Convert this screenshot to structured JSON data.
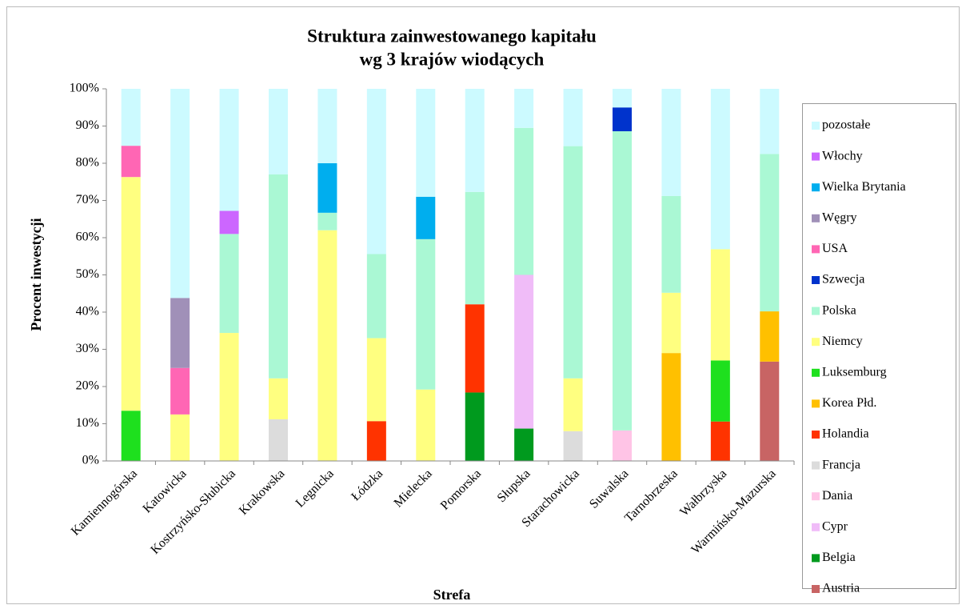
{
  "chart_data": {
    "type": "stacked_bar",
    "title": [
      "Struktura zainwestowanego kapitału",
      "wg 3 krajów wiodących"
    ],
    "x_label": "Strefa",
    "y_label": "Procent inwestycji",
    "categories": [
      "Kamiennogórska",
      "Katowicka",
      "Kostrzyńsko-Słubicka",
      "Krakowska",
      "Legnicka",
      "Łódzka",
      "Mielecka",
      "Pomorska",
      "Słupska",
      "Starachowicka",
      "Suwalska",
      "Tarnobrzeska",
      "Wałbrzyska",
      "Warmińsko-Mazurska"
    ],
    "ylim": [
      0,
      100
    ],
    "yticks": [
      {
        "value": 0,
        "label": "0%"
      },
      {
        "value": 10,
        "label": "10%"
      },
      {
        "value": 20,
        "label": "20%"
      },
      {
        "value": 30,
        "label": "30%"
      },
      {
        "value": 40,
        "label": "40%"
      },
      {
        "value": 50,
        "label": "50%"
      },
      {
        "value": 60,
        "label": "60%"
      },
      {
        "value": 70,
        "label": "70%"
      },
      {
        "value": 80,
        "label": "80%"
      },
      {
        "value": 90,
        "label": "90%"
      },
      {
        "value": 100,
        "label": "100%"
      }
    ],
    "grid": false,
    "legend": "right",
    "series": [
      {
        "name": "Austria",
        "color": "#c86464",
        "values": [
          null,
          null,
          null,
          null,
          null,
          null,
          null,
          null,
          null,
          null,
          null,
          null,
          null,
          26.7
        ]
      },
      {
        "name": "Belgia",
        "color": "#009a1e",
        "values": [
          null,
          null,
          null,
          null,
          null,
          null,
          null,
          18.4,
          8.7,
          null,
          null,
          null,
          null,
          null
        ]
      },
      {
        "name": "Cypr",
        "color": "#f0bcf8",
        "values": [
          null,
          null,
          null,
          null,
          null,
          null,
          null,
          null,
          41.3,
          null,
          null,
          null,
          null,
          null
        ]
      },
      {
        "name": "Dania",
        "color": "#ffc4e6",
        "values": [
          null,
          null,
          null,
          null,
          null,
          null,
          null,
          null,
          null,
          null,
          8.2,
          null,
          null,
          null
        ]
      },
      {
        "name": "Francja",
        "color": "#dcdcdc",
        "values": [
          null,
          null,
          null,
          11.2,
          null,
          null,
          null,
          null,
          null,
          8,
          null,
          null,
          null,
          null
        ]
      },
      {
        "name": "Holandia",
        "color": "#ff3300",
        "values": [
          null,
          null,
          null,
          null,
          null,
          10.7,
          null,
          23.7,
          null,
          null,
          null,
          null,
          10.6,
          null
        ]
      },
      {
        "name": "Korea Płd.",
        "color": "#ffc000",
        "values": [
          null,
          null,
          null,
          null,
          null,
          null,
          null,
          null,
          null,
          null,
          null,
          29,
          null,
          13.5
        ]
      },
      {
        "name": "Luksemburg",
        "color": "#1ee01e",
        "values": [
          13.5,
          null,
          null,
          null,
          null,
          null,
          null,
          null,
          null,
          null,
          null,
          null,
          16.4,
          null
        ]
      },
      {
        "name": "Niemcy",
        "color": "#ffff80",
        "values": [
          62.8,
          12.5,
          34.4,
          11,
          62,
          22.3,
          19.2,
          null,
          null,
          14.2,
          null,
          16.2,
          29.9,
          null
        ]
      },
      {
        "name": "Polska",
        "color": "#aaf8d4",
        "values": [
          null,
          null,
          26.6,
          54.8,
          4.7,
          22.6,
          40.4,
          30.2,
          39.5,
          62.4,
          80.4,
          26,
          null,
          42.3
        ]
      },
      {
        "name": "Szwecja",
        "color": "#0033cc",
        "values": [
          null,
          null,
          null,
          null,
          null,
          null,
          null,
          null,
          null,
          null,
          6.4,
          null,
          null,
          null
        ]
      },
      {
        "name": "USA",
        "color": "#ff66b4",
        "values": [
          8.4,
          12.5,
          null,
          null,
          null,
          null,
          null,
          null,
          null,
          null,
          null,
          null,
          null,
          null
        ]
      },
      {
        "name": "Węgry",
        "color": "#a090b8",
        "values": [
          null,
          18.8,
          null,
          null,
          null,
          null,
          null,
          null,
          null,
          null,
          null,
          null,
          null,
          null
        ]
      },
      {
        "name": "Wielka Brytania",
        "color": "#00aeee",
        "values": [
          null,
          null,
          null,
          null,
          13.3,
          null,
          11.4,
          null,
          null,
          null,
          null,
          null,
          null,
          null
        ]
      },
      {
        "name": "Włochy",
        "color": "#cc66ff",
        "values": [
          null,
          null,
          6.2,
          null,
          null,
          null,
          null,
          null,
          null,
          null,
          null,
          null,
          null,
          null
        ]
      },
      {
        "name": "pozostałe",
        "color": "#ccfaff",
        "values": [
          15.3,
          56.2,
          32.8,
          23,
          20,
          44.4,
          29,
          27.7,
          10.5,
          15.4,
          5,
          28.8,
          43.1,
          17.5
        ]
      }
    ]
  }
}
